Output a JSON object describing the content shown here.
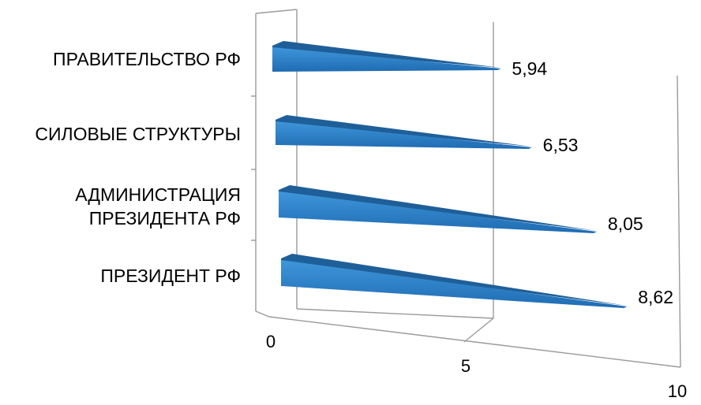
{
  "chart_data": {
    "type": "bar",
    "orientation": "horizontal",
    "style": "3d-wedge",
    "title": "",
    "xlabel": "",
    "ylabel": "",
    "categories": [
      "ПРАВИТЕЛЬСТВО РФ",
      "СИЛОВЫЕ СТРУКТУРЫ",
      "АДМИНИСТРАЦИЯ ПРЕЗИДЕНТА РФ",
      "ПРЕЗИДЕНТ РФ"
    ],
    "values": [
      5.94,
      6.53,
      8.05,
      8.62
    ],
    "value_labels": [
      "5,94",
      "6,53",
      "8,05",
      "8,62"
    ],
    "xlim": [
      0,
      10
    ],
    "x_ticks": [
      "0",
      "5",
      "10"
    ],
    "bar_color": "#2f7fc4",
    "bar_top_color": "#1f5f99",
    "grid": true
  }
}
